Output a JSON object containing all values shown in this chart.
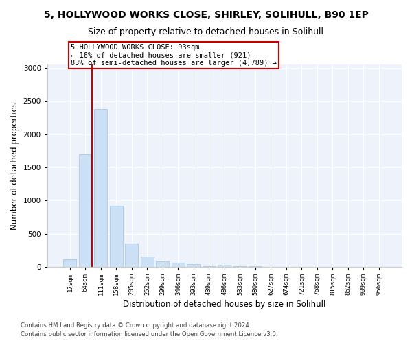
{
  "title": "5, HOLLYWOOD WORKS CLOSE, SHIRLEY, SOLIHULL, B90 1EP",
  "subtitle": "Size of property relative to detached houses in Solihull",
  "xlabel": "Distribution of detached houses by size in Solihull",
  "ylabel": "Number of detached properties",
  "bar_labels": [
    "17sqm",
    "64sqm",
    "111sqm",
    "158sqm",
    "205sqm",
    "252sqm",
    "299sqm",
    "346sqm",
    "393sqm",
    "439sqm",
    "486sqm",
    "533sqm",
    "580sqm",
    "627sqm",
    "674sqm",
    "721sqm",
    "768sqm",
    "815sqm",
    "862sqm",
    "909sqm",
    "956sqm"
  ],
  "bar_values": [
    110,
    1700,
    2380,
    920,
    350,
    150,
    80,
    55,
    40,
    5,
    30,
    5,
    5,
    0,
    0,
    0,
    0,
    0,
    0,
    0,
    0
  ],
  "bar_color": "#cce0f5",
  "bar_edge_color": "#a8c8e8",
  "vline_color": "#cc0000",
  "annotation_text": "5 HOLLYWOOD WORKS CLOSE: 93sqm\n← 16% of detached houses are smaller (921)\n83% of semi-detached houses are larger (4,789) →",
  "annotation_box_color": "#ffffff",
  "annotation_box_edge_color": "#cc0000",
  "ylim": [
    0,
    3050
  ],
  "yticks": [
    0,
    500,
    1000,
    1500,
    2000,
    2500,
    3000
  ],
  "plot_bg_color": "#eef2fa",
  "footer": "Contains HM Land Registry data © Crown copyright and database right 2024.\nContains public sector information licensed under the Open Government Licence v3.0.",
  "title_fontsize": 10,
  "subtitle_fontsize": 9,
  "xlabel_fontsize": 8.5,
  "ylabel_fontsize": 8.5,
  "tick_fontsize": 7.5,
  "xtick_fontsize": 6.5
}
